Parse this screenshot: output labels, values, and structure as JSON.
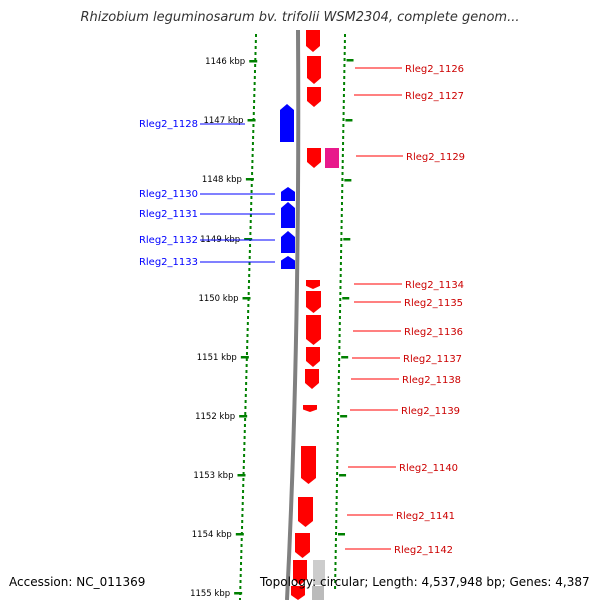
{
  "title": "Rhizobium leguminosarum bv. trifolii WSM2304, complete genom...",
  "accession": "Accession: NC_011369",
  "topology": "Topology: circular; Length: 4,537,948 bp; Genes: 4,387",
  "colors": {
    "forward_gene": "#ff0000",
    "reverse_gene": "#0000ff",
    "pink_gene": "#e8198b",
    "ruler": "#008000",
    "backbone": "#808080"
  },
  "kbp_labels": [
    "1146 kbp",
    "1147 kbp",
    "1148 kbp",
    "1149 kbp",
    "1150 kbp",
    "1151 kbp",
    "1152 kbp",
    "1153 kbp",
    "1154 kbp",
    "1155 kbp"
  ],
  "left_genes": [
    {
      "label": "Rleg2_1128"
    },
    {
      "label": "Rleg2_1130"
    },
    {
      "label": "Rleg2_1131"
    },
    {
      "label": "Rleg2_1132"
    },
    {
      "label": "Rleg2_1133"
    }
  ],
  "right_genes": [
    {
      "label": "Rleg2_1126"
    },
    {
      "label": "Rleg2_1127"
    },
    {
      "label": "Rleg2_1129"
    },
    {
      "label": "Rleg2_1134"
    },
    {
      "label": "Rleg2_1135"
    },
    {
      "label": "Rleg2_1136"
    },
    {
      "label": "Rleg2_1137"
    },
    {
      "label": "Rleg2_1138"
    },
    {
      "label": "Rleg2_1139"
    },
    {
      "label": "Rleg2_1140"
    },
    {
      "label": "Rleg2_1141"
    },
    {
      "label": "Rleg2_1142"
    }
  ]
}
